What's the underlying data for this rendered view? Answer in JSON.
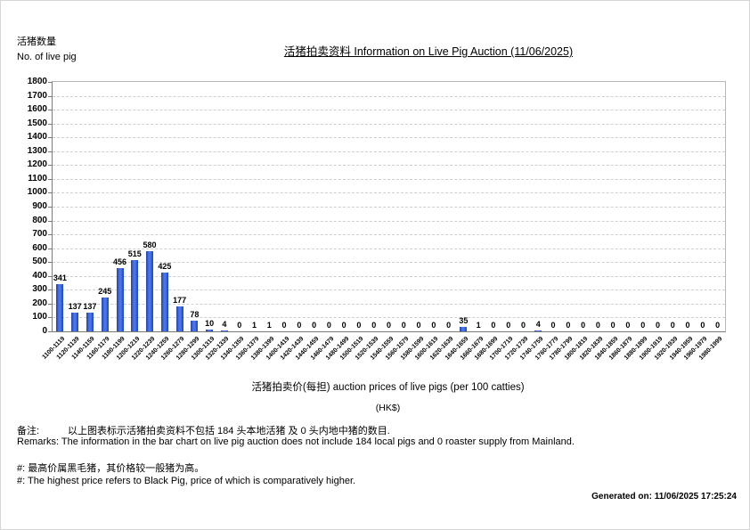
{
  "header": {
    "y_axis_label_zh": "活猪数量",
    "y_axis_label_en": "No. of live pig",
    "title": "活猪拍卖资料 Information on Live Pig Auction (11/06/2025)"
  },
  "chart_data": {
    "type": "bar",
    "title": "活猪拍卖资料 Information on Live Pig Auction (11/06/2025)",
    "xlabel": "活猪拍卖价(每担) auction prices of live pigs (per 100 catties)",
    "xlabel_unit": "(HK$)",
    "ylabel_zh": "活猪数量",
    "ylabel_en": "No. of live pig",
    "ylim": [
      0,
      1800
    ],
    "ytick_step": 100,
    "grid": true,
    "legend_position": "none",
    "bar_color": "#4a74ee",
    "bar_edge_color": "#2850b4",
    "categories": [
      "1100-1119",
      "1120-1139",
      "1140-1159",
      "1160-1179",
      "1180-1199",
      "1200-1219",
      "1220-1239",
      "1240-1259",
      "1260-1279",
      "1280-1299",
      "1300-1319",
      "1320-1339",
      "1340-1359",
      "1360-1379",
      "1380-1399",
      "1400-1419",
      "1420-1439",
      "1440-1459",
      "1460-1479",
      "1480-1499",
      "1500-1519",
      "1520-1539",
      "1540-1559",
      "1560-1579",
      "1580-1599",
      "1600-1619",
      "1620-1639",
      "1640-1659",
      "1660-1679",
      "1680-1699",
      "1700-1719",
      "1720-1739",
      "1740-1759",
      "1760-1779",
      "1780-1799",
      "1800-1819",
      "1820-1839",
      "1840-1859",
      "1860-1879",
      "1880-1899",
      "1900-1919",
      "1920-1939",
      "1940-1959",
      "1960-1979",
      "1980-1999"
    ],
    "values": [
      341,
      137,
      137,
      245,
      456,
      515,
      580,
      425,
      177,
      78,
      10,
      4,
      0,
      1,
      1,
      0,
      0,
      0,
      0,
      0,
      0,
      0,
      0,
      0,
      0,
      0,
      0,
      35,
      1,
      0,
      0,
      0,
      4,
      0,
      0,
      0,
      0,
      0,
      0,
      0,
      0,
      0,
      0,
      0,
      0
    ]
  },
  "remarks": {
    "line1_label": "备注:",
    "line1_text": "以上图表标示活猪拍卖资料不包括 184 头本地活猪 及 0 头内地中猪的数目.",
    "line2": "Remarks: The information in the bar chart on live pig auction does not include 184 local pigs and 0 roaster supply from Mainland.",
    "line3": "#: 最高价属黑毛猪，其价格较一般猪为高。",
    "line4": "#: The highest price refers to Black Pig, price of which is comparatively higher."
  },
  "footer": {
    "generated_on": "Generated on: 11/06/2025 17:25:24"
  }
}
